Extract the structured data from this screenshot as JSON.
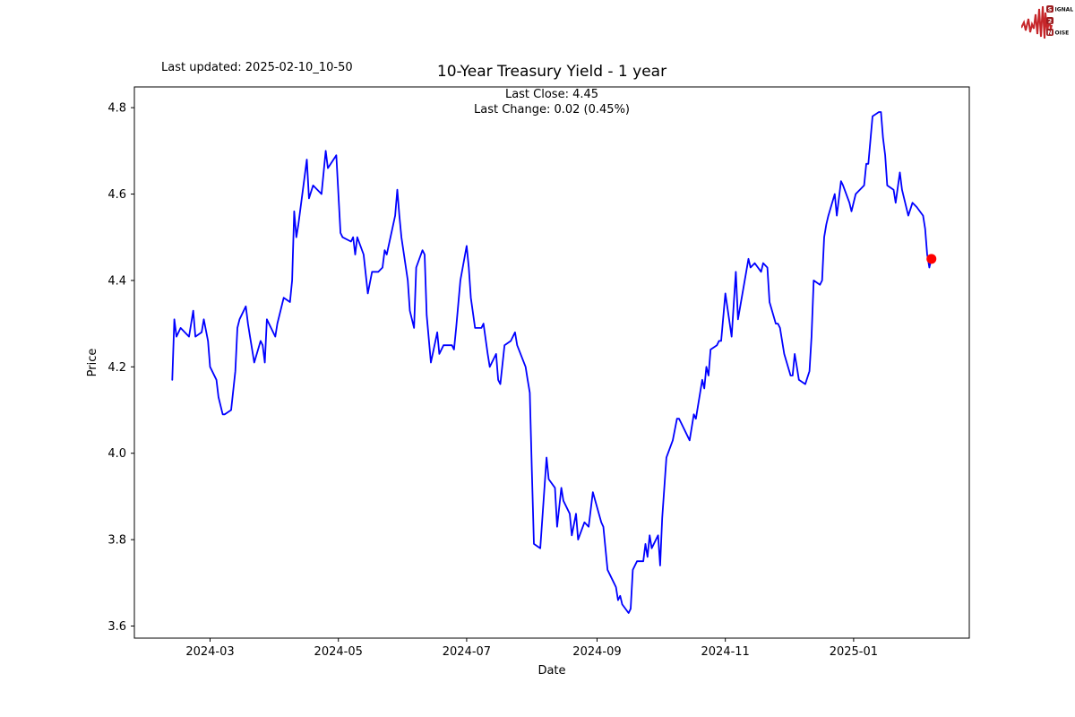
{
  "annotations": {
    "last_updated": "Last updated: 2025-02-10_10-50"
  },
  "logo": {
    "rows": [
      {
        "badge": "S",
        "text": "IGNAL"
      },
      {
        "badge": "2",
        "text": ""
      },
      {
        "badge": "N",
        "text": "OISE"
      }
    ],
    "badge_color": "#9b1b1e",
    "text_color": "#111111",
    "waveform_color": "#c6262a"
  },
  "chart_data": {
    "type": "line",
    "title": "10-Year Treasury Yield - 1 year",
    "subtitle_lines": [
      "Last Close: 4.45",
      "Last Change: 0.02 (0.45%)"
    ],
    "xlabel": "Date",
    "ylabel": "Price",
    "last_close": 4.45,
    "last_change": 0.02,
    "last_change_pct": "0.45%",
    "line_color": "#0000ff",
    "marker_color": "#ff0000",
    "axis_color": "#000000",
    "grid": false,
    "legend": "none",
    "ylim": [
      3.572,
      4.848
    ],
    "xlim": [
      "2024-01-25",
      "2025-02-25"
    ],
    "y_ticks": [
      "3.6",
      "3.8",
      "4.0",
      "4.2",
      "4.4",
      "4.6",
      "4.8"
    ],
    "x_ticks": [
      "2024-03",
      "2024-05",
      "2024-07",
      "2024-09",
      "2024-11",
      "2025-01"
    ],
    "series": [
      {
        "name": "10-Year Treasury Yield",
        "dates": [
          "2024-02-12",
          "2024-02-13",
          "2024-02-14",
          "2024-02-16",
          "2024-02-20",
          "2024-02-22",
          "2024-02-23",
          "2024-02-26",
          "2024-02-27",
          "2024-02-29",
          "2024-03-01",
          "2024-03-04",
          "2024-03-05",
          "2024-03-07",
          "2024-03-08",
          "2024-03-11",
          "2024-03-13",
          "2024-03-14",
          "2024-03-15",
          "2024-03-18",
          "2024-03-19",
          "2024-03-20",
          "2024-03-22",
          "2024-03-25",
          "2024-03-26",
          "2024-03-27",
          "2024-03-28",
          "2024-04-01",
          "2024-04-02",
          "2024-04-05",
          "2024-04-08",
          "2024-04-09",
          "2024-04-10",
          "2024-04-11",
          "2024-04-12",
          "2024-04-16",
          "2024-04-17",
          "2024-04-19",
          "2024-04-23",
          "2024-04-25",
          "2024-04-26",
          "2024-04-30",
          "2024-05-02",
          "2024-05-03",
          "2024-05-07",
          "2024-05-08",
          "2024-05-09",
          "2024-05-10",
          "2024-05-13",
          "2024-05-15",
          "2024-05-17",
          "2024-05-20",
          "2024-05-22",
          "2024-05-23",
          "2024-05-24",
          "2024-05-28",
          "2024-05-29",
          "2024-05-30",
          "2024-05-31",
          "2024-06-03",
          "2024-06-04",
          "2024-06-06",
          "2024-06-07",
          "2024-06-10",
          "2024-06-11",
          "2024-06-12",
          "2024-06-14",
          "2024-06-17",
          "2024-06-18",
          "2024-06-20",
          "2024-06-24",
          "2024-06-25",
          "2024-06-26",
          "2024-06-28",
          "2024-07-01",
          "2024-07-02",
          "2024-07-03",
          "2024-07-05",
          "2024-07-08",
          "2024-07-09",
          "2024-07-11",
          "2024-07-12",
          "2024-07-15",
          "2024-07-16",
          "2024-07-17",
          "2024-07-19",
          "2024-07-22",
          "2024-07-24",
          "2024-07-25",
          "2024-07-29",
          "2024-07-30",
          "2024-07-31",
          "2024-08-01",
          "2024-08-02",
          "2024-08-05",
          "2024-08-08",
          "2024-08-09",
          "2024-08-12",
          "2024-08-13",
          "2024-08-15",
          "2024-08-16",
          "2024-08-19",
          "2024-08-20",
          "2024-08-22",
          "2024-08-23",
          "2024-08-26",
          "2024-08-28",
          "2024-08-30",
          "2024-09-03",
          "2024-09-04",
          "2024-09-06",
          "2024-09-09",
          "2024-09-10",
          "2024-09-11",
          "2024-09-12",
          "2024-09-13",
          "2024-09-16",
          "2024-09-17",
          "2024-09-18",
          "2024-09-20",
          "2024-09-23",
          "2024-09-24",
          "2024-09-25",
          "2024-09-26",
          "2024-09-27",
          "2024-09-30",
          "2024-10-01",
          "2024-10-02",
          "2024-10-04",
          "2024-10-07",
          "2024-10-09",
          "2024-10-10",
          "2024-10-11",
          "2024-10-15",
          "2024-10-17",
          "2024-10-18",
          "2024-10-21",
          "2024-10-22",
          "2024-10-23",
          "2024-10-24",
          "2024-10-25",
          "2024-10-28",
          "2024-10-29",
          "2024-10-30",
          "2024-11-01",
          "2024-11-04",
          "2024-11-06",
          "2024-11-07",
          "2024-11-12",
          "2024-11-13",
          "2024-11-15",
          "2024-11-18",
          "2024-11-19",
          "2024-11-21",
          "2024-11-22",
          "2024-11-25",
          "2024-11-26",
          "2024-11-27",
          "2024-11-29",
          "2024-12-02",
          "2024-12-03",
          "2024-12-04",
          "2024-12-05",
          "2024-12-06",
          "2024-12-09",
          "2024-12-11",
          "2024-12-12",
          "2024-12-13",
          "2024-12-16",
          "2024-12-17",
          "2024-12-18",
          "2024-12-19",
          "2024-12-20",
          "2024-12-23",
          "2024-12-24",
          "2024-12-26",
          "2024-12-27",
          "2024-12-30",
          "2024-12-31",
          "2025-01-02",
          "2025-01-06",
          "2025-01-07",
          "2025-01-08",
          "2025-01-10",
          "2025-01-13",
          "2025-01-14",
          "2025-01-15",
          "2025-01-16",
          "2025-01-17",
          "2025-01-20",
          "2025-01-21",
          "2025-01-23",
          "2025-01-24",
          "2025-01-27",
          "2025-01-29",
          "2025-01-31",
          "2025-02-03",
          "2025-02-04",
          "2025-02-05",
          "2025-02-06",
          "2025-02-07"
        ],
        "values": [
          4.17,
          4.31,
          4.27,
          4.29,
          4.27,
          4.33,
          4.27,
          4.28,
          4.31,
          4.26,
          4.2,
          4.17,
          4.13,
          4.09,
          4.09,
          4.1,
          4.19,
          4.29,
          4.31,
          4.34,
          4.3,
          4.27,
          4.21,
          4.26,
          4.25,
          4.21,
          4.31,
          4.27,
          4.3,
          4.36,
          4.35,
          4.4,
          4.56,
          4.5,
          4.53,
          4.68,
          4.59,
          4.62,
          4.6,
          4.7,
          4.66,
          4.69,
          4.51,
          4.5,
          4.49,
          4.5,
          4.46,
          4.5,
          4.46,
          4.37,
          4.42,
          4.42,
          4.43,
          4.47,
          4.46,
          4.55,
          4.61,
          4.55,
          4.5,
          4.4,
          4.33,
          4.29,
          4.43,
          4.47,
          4.46,
          4.32,
          4.21,
          4.28,
          4.23,
          4.25,
          4.25,
          4.24,
          4.29,
          4.4,
          4.48,
          4.43,
          4.36,
          4.29,
          4.29,
          4.3,
          4.23,
          4.2,
          4.23,
          4.17,
          4.16,
          4.25,
          4.26,
          4.28,
          4.25,
          4.2,
          4.17,
          4.14,
          3.96,
          3.79,
          3.78,
          3.99,
          3.94,
          3.92,
          3.83,
          3.92,
          3.89,
          3.86,
          3.81,
          3.86,
          3.8,
          3.84,
          3.83,
          3.91,
          3.84,
          3.83,
          3.73,
          3.7,
          3.69,
          3.66,
          3.67,
          3.65,
          3.63,
          3.64,
          3.73,
          3.75,
          3.75,
          3.79,
          3.76,
          3.81,
          3.78,
          3.81,
          3.74,
          3.85,
          3.99,
          4.03,
          4.08,
          4.08,
          4.07,
          4.03,
          4.09,
          4.08,
          4.17,
          4.15,
          4.2,
          4.18,
          4.24,
          4.25,
          4.26,
          4.26,
          4.37,
          4.27,
          4.42,
          4.31,
          4.45,
          4.43,
          4.44,
          4.42,
          4.44,
          4.43,
          4.35,
          4.3,
          4.3,
          4.29,
          4.23,
          4.18,
          4.18,
          4.23,
          4.2,
          4.17,
          4.16,
          4.19,
          4.27,
          4.4,
          4.39,
          4.4,
          4.5,
          4.53,
          4.55,
          4.6,
          4.55,
          4.63,
          4.62,
          4.58,
          4.56,
          4.6,
          4.62,
          4.67,
          4.67,
          4.78,
          4.79,
          4.79,
          4.73,
          4.69,
          4.62,
          4.61,
          4.58,
          4.65,
          4.61,
          4.55,
          4.58,
          4.57,
          4.55,
          4.52,
          4.46,
          4.43,
          4.45
        ]
      }
    ],
    "last_point": {
      "date": "2025-02-07",
      "value": 4.45
    }
  }
}
